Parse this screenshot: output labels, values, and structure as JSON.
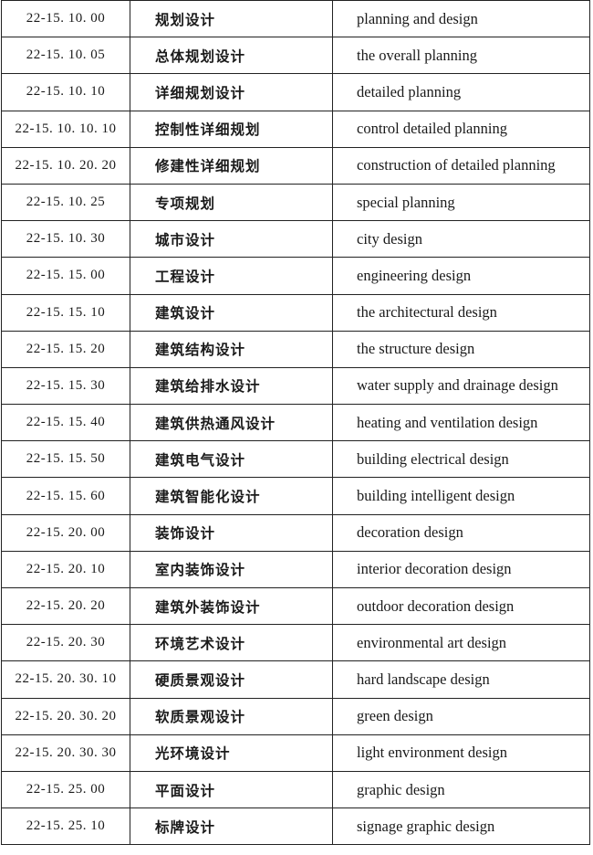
{
  "table": {
    "rows": [
      {
        "code": "22-15. 10. 00",
        "zh": "规划设计",
        "en": "planning and design"
      },
      {
        "code": "22-15. 10. 05",
        "zh": "总体规划设计",
        "en": "the overall planning"
      },
      {
        "code": "22-15. 10. 10",
        "zh": "详细规划设计",
        "en": "detailed planning"
      },
      {
        "code": "22-15. 10. 10. 10",
        "zh": "控制性详细规划",
        "en": "control detailed planning"
      },
      {
        "code": "22-15. 10. 20. 20",
        "zh": "修建性详细规划",
        "en": "construction of detailed planning"
      },
      {
        "code": "22-15. 10. 25",
        "zh": "专项规划",
        "en": "special planning"
      },
      {
        "code": "22-15. 10. 30",
        "zh": "城市设计",
        "en": "city design"
      },
      {
        "code": "22-15. 15. 00",
        "zh": "工程设计",
        "en": "engineering design"
      },
      {
        "code": "22-15. 15. 10",
        "zh": "建筑设计",
        "en": "the architectural design"
      },
      {
        "code": "22-15. 15. 20",
        "zh": "建筑结构设计",
        "en": "the structure design"
      },
      {
        "code": "22-15. 15. 30",
        "zh": "建筑给排水设计",
        "en": "water supply and drainage design"
      },
      {
        "code": "22-15. 15. 40",
        "zh": "建筑供热通风设计",
        "en": "heating and ventilation design"
      },
      {
        "code": "22-15. 15. 50",
        "zh": "建筑电气设计",
        "en": "building electrical design"
      },
      {
        "code": "22-15. 15. 60",
        "zh": "建筑智能化设计",
        "en": "building intelligent design"
      },
      {
        "code": "22-15. 20. 00",
        "zh": "装饰设计",
        "en": "decoration design"
      },
      {
        "code": "22-15. 20. 10",
        "zh": "室内装饰设计",
        "en": "interior decoration design"
      },
      {
        "code": "22-15. 20. 20",
        "zh": "建筑外装饰设计",
        "en": "outdoor decoration design"
      },
      {
        "code": "22-15. 20. 30",
        "zh": "环境艺术设计",
        "en": "environmental art design"
      },
      {
        "code": "22-15. 20. 30. 10",
        "zh": "硬质景观设计",
        "en": "hard landscape design"
      },
      {
        "code": "22-15. 20. 30. 20",
        "zh": "软质景观设计",
        "en": "green design"
      },
      {
        "code": "22-15. 20. 30. 30",
        "zh": "光环境设计",
        "en": "light environment design"
      },
      {
        "code": "22-15. 25. 00",
        "zh": "平面设计",
        "en": "graphic design"
      },
      {
        "code": "22-15. 25. 10",
        "zh": "标牌设计",
        "en": "signage graphic design"
      }
    ]
  }
}
